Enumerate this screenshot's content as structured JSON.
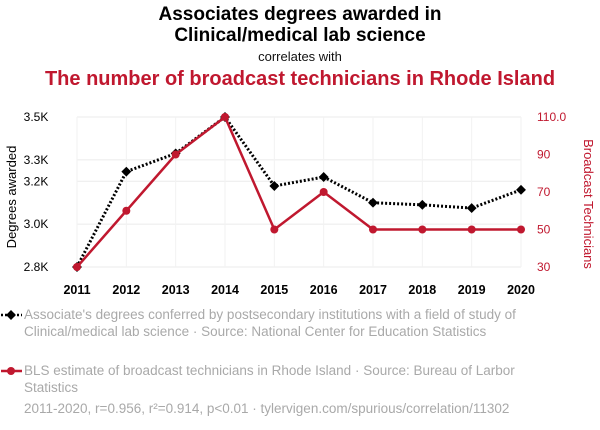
{
  "header": {
    "title_line1": "Associates degrees awarded in",
    "title_line2": "Clinical/medical lab science",
    "subtitle": "correlates with",
    "title_secondary": "The number of broadcast technicians in Rhode Island"
  },
  "chart_data": {
    "type": "line",
    "x": [
      2011,
      2012,
      2013,
      2014,
      2015,
      2016,
      2017,
      2018,
      2019,
      2020
    ],
    "x_tick_labels": [
      "2011",
      "2012",
      "2013",
      "2014",
      "2015",
      "2016",
      "2017",
      "2018",
      "2019",
      "2020"
    ],
    "ylabel_left": "Degrees awarded",
    "ylabel_right": "Broadcast Technicians",
    "ylim_left": [
      2800,
      3500
    ],
    "ylim_right": [
      30,
      110
    ],
    "y_left_ticks": [
      {
        "value": 2800,
        "label": "2.8K"
      },
      {
        "value": 3000,
        "label": "3.0K"
      },
      {
        "value": 3200,
        "label": "3.2K"
      },
      {
        "value": 3300,
        "label": "3.3K"
      },
      {
        "value": 3500,
        "label": "3.5K"
      }
    ],
    "y_right_ticks": [
      {
        "value": 30,
        "label": "30"
      },
      {
        "value": 50,
        "label": "50"
      },
      {
        "value": 70,
        "label": "70"
      },
      {
        "value": 90,
        "label": "90"
      },
      {
        "value": 110,
        "label": "110.0"
      }
    ],
    "grid": "horizontal",
    "series": [
      {
        "name": "Associate's degrees conferred by postsecondary institutions with a field of study of Clinical/medical lab science",
        "axis": "left",
        "color": "#000000",
        "style": "dotted",
        "marker": "diamond",
        "values": [
          2800,
          3245,
          3330,
          3500,
          3178,
          3220,
          3100,
          3090,
          3075,
          3160
        ]
      },
      {
        "name": "BLS estimate of broadcast technicians in Rhode Island",
        "axis": "right",
        "color": "#c0182f",
        "style": "solid",
        "marker": "circle",
        "values": [
          30,
          60,
          90,
          110,
          50,
          70,
          50,
          50,
          50,
          50
        ]
      }
    ]
  },
  "legend": {
    "items": [
      {
        "text": "Associate's degrees conferred by postsecondary institutions with a field of study of Clinical/medical lab science · Source: National Center for Education Statistics"
      },
      {
        "text": "BLS estimate of broadcast technicians in Rhode Island · Source: Bureau of Larbor Statistics"
      }
    ]
  },
  "footer": {
    "text": "2011-2020, r=0.956, r²=0.914, p<0.01 · tylervigen.com/spurious/correlation/11302"
  }
}
